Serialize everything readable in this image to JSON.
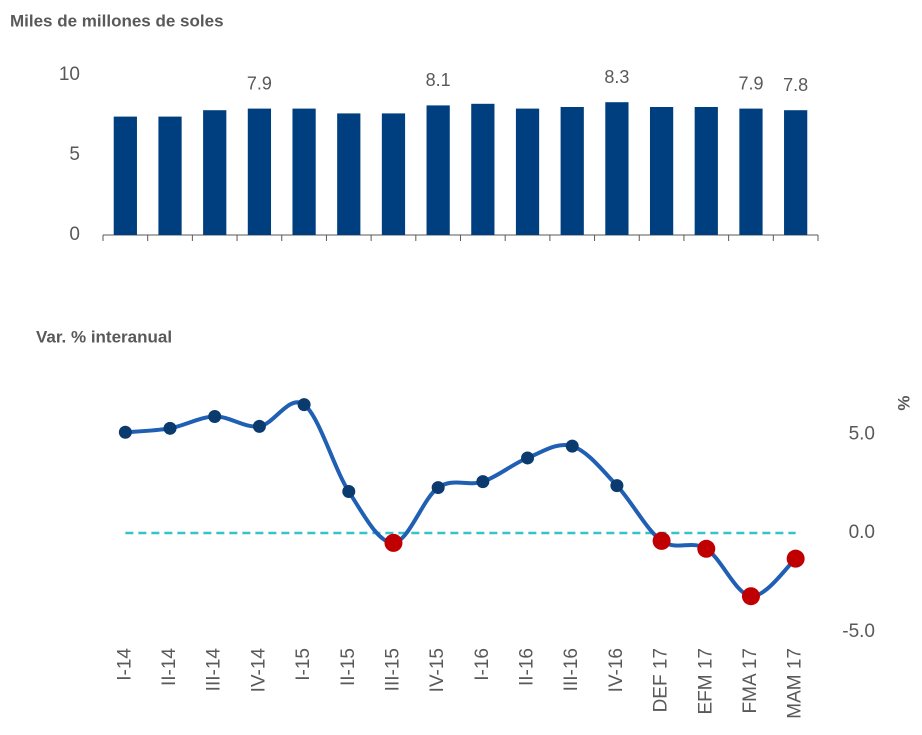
{
  "chart_data": [
    {
      "type": "bar",
      "subtitle": "Miles de millones de soles",
      "categories": [
        null,
        null,
        null,
        null,
        null,
        null,
        null,
        null,
        null,
        null,
        null,
        null,
        null,
        null,
        null,
        null
      ],
      "values": [
        7.4,
        7.4,
        7.8,
        7.9,
        7.9,
        7.6,
        7.6,
        8.1,
        8.2,
        7.9,
        8.0,
        8.3,
        8.0,
        8.0,
        7.9,
        7.8
      ],
      "value_labels": [
        null,
        null,
        null,
        "7.9",
        null,
        null,
        null,
        "8.1",
        null,
        null,
        null,
        "8.3",
        null,
        null,
        "7.9",
        "7.8"
      ],
      "color": "#003f7f",
      "ylim": [
        0,
        10
      ],
      "yticks": [
        0,
        5,
        10
      ]
    },
    {
      "type": "line",
      "subtitle": "Var. % interanual",
      "ylabel": "%",
      "categories": [
        "I-14",
        "II-14",
        "III-14",
        "IV-14",
        "I-15",
        "II-15",
        "III-15",
        "IV-15",
        "I-16",
        "II-16",
        "III-16",
        "IV-16",
        "DEF 17",
        "EFM 17",
        "FMA 17",
        "MAM 17"
      ],
      "values": [
        5.1,
        5.3,
        5.9,
        5.4,
        6.5,
        2.1,
        -0.5,
        2.3,
        2.6,
        3.8,
        4.4,
        2.4,
        -0.4,
        -0.8,
        -3.2,
        -1.3
      ],
      "color": "#1f5fb4",
      "marker_color": "#0b3a6e",
      "negative_color": "#c00000",
      "zero_line_color": "#33c3c8",
      "axis": "y2",
      "y2lim": [
        -8,
        8
      ],
      "y2ticks": [
        {
          "value": 5,
          "label": "5.0"
        },
        {
          "value": 0,
          "label": "0.0"
        },
        {
          "value": -5,
          "label": "-5.0"
        }
      ]
    }
  ]
}
